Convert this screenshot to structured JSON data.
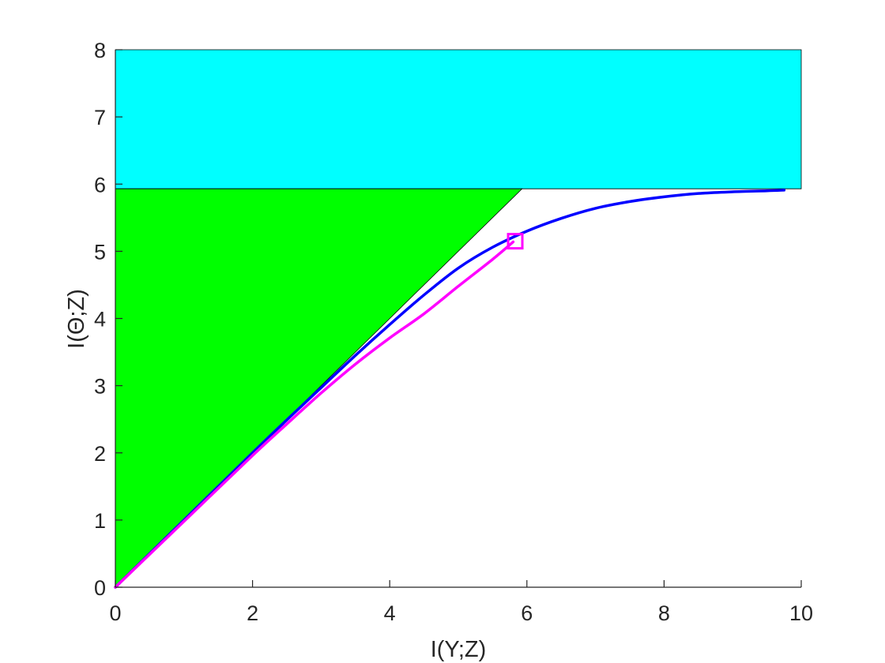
{
  "chart_data": {
    "type": "area",
    "xlabel": "I(Y;Z)",
    "ylabel": "I(Θ;Z)",
    "xlim": [
      0,
      10
    ],
    "ylim": [
      0,
      8
    ],
    "xticks": [
      0,
      2,
      4,
      6,
      8,
      10
    ],
    "yticks": [
      0,
      1,
      2,
      3,
      4,
      5,
      6,
      7,
      8
    ],
    "grid": false,
    "regions": [
      {
        "color": "#00ffff",
        "points": [
          [
            0,
            5.93
          ],
          [
            10,
            5.93
          ],
          [
            10,
            8
          ],
          [
            0,
            8
          ]
        ]
      },
      {
        "color": "#00ff00",
        "points": [
          [
            0,
            0
          ],
          [
            5.93,
            5.93
          ],
          [
            0,
            5.93
          ]
        ]
      }
    ],
    "series": [
      {
        "color": "#0000ff",
        "points": [
          [
            0,
            0
          ],
          [
            1,
            1
          ],
          [
            2,
            2
          ],
          [
            2.5,
            2.49
          ],
          [
            3,
            2.97
          ],
          [
            3.5,
            3.45
          ],
          [
            4,
            3.91
          ],
          [
            4.5,
            4.35
          ],
          [
            5,
            4.75
          ],
          [
            5.5,
            5.06
          ],
          [
            6,
            5.3
          ],
          [
            6.5,
            5.49
          ],
          [
            7,
            5.64
          ],
          [
            7.5,
            5.74
          ],
          [
            8,
            5.81
          ],
          [
            8.5,
            5.86
          ],
          [
            9,
            5.885
          ],
          [
            9.5,
            5.9
          ],
          [
            9.75,
            5.91
          ]
        ]
      },
      {
        "color": "#ff00ff",
        "points": [
          [
            0,
            0
          ],
          [
            1,
            0.98
          ],
          [
            2,
            1.96
          ],
          [
            2.5,
            2.43
          ],
          [
            3,
            2.89
          ],
          [
            3.5,
            3.32
          ],
          [
            4,
            3.71
          ],
          [
            4.5,
            4.07
          ],
          [
            5,
            4.48
          ],
          [
            5.5,
            4.88
          ],
          [
            5.8,
            5.14
          ]
        ]
      }
    ],
    "markers": [
      {
        "color": "#ff00ff",
        "shape": "square",
        "x": 5.83,
        "y": 5.15
      }
    ]
  }
}
